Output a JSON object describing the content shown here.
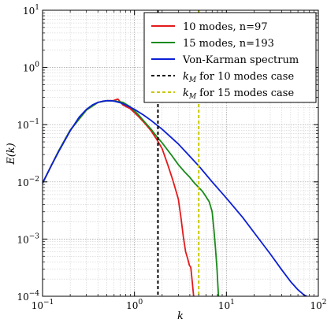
{
  "chart_data": {
    "type": "line",
    "title": "",
    "xlabel": "k",
    "ylabel": "E(k)",
    "xscale": "log",
    "yscale": "log",
    "xlim": [
      0.1,
      100
    ],
    "ylim": [
      0.0001,
      10
    ],
    "grid": true,
    "legend_position": "top-right",
    "x_tick_labels": [
      "10^-1",
      "10^0",
      "10^1",
      "10^2"
    ],
    "y_tick_labels": [
      "10^-4",
      "10^-3",
      "10^-2",
      "10^-1",
      "10^0",
      "10^1"
    ],
    "series": [
      {
        "name": "10 modes, n=97",
        "color": "#e41a1c",
        "style": "solid",
        "x": [
          0.1,
          0.15,
          0.2,
          0.3,
          0.4,
          0.5,
          0.58,
          0.66,
          0.75,
          0.9,
          1.1,
          1.3,
          1.5,
          1.75,
          2.0,
          2.3,
          2.6,
          3.0,
          3.2,
          3.4,
          3.6,
          3.8,
          3.95,
          4.1,
          4.25,
          4.4
        ],
        "y": [
          0.0095,
          0.035,
          0.08,
          0.18,
          0.245,
          0.262,
          0.262,
          0.28,
          0.22,
          0.19,
          0.14,
          0.105,
          0.08,
          0.055,
          0.038,
          0.02,
          0.011,
          0.005,
          0.0024,
          0.0011,
          0.0006,
          0.00045,
          0.00035,
          0.00032,
          0.00018,
          0.0001
        ]
      },
      {
        "name": "15 modes, n=193",
        "color": "#1a8a1a",
        "style": "solid",
        "x": [
          0.1,
          0.15,
          0.2,
          0.3,
          0.4,
          0.5,
          0.6,
          0.75,
          0.9,
          1.1,
          1.3,
          1.5,
          1.75,
          2.0,
          2.5,
          3.0,
          3.5,
          4.0,
          4.5,
          5.0,
          5.5,
          6.0,
          6.5,
          7.0,
          7.3,
          7.6,
          7.9,
          8.2
        ],
        "y": [
          0.0095,
          0.035,
          0.08,
          0.18,
          0.245,
          0.262,
          0.26,
          0.245,
          0.205,
          0.15,
          0.11,
          0.085,
          0.062,
          0.048,
          0.03,
          0.02,
          0.015,
          0.012,
          0.0095,
          0.008,
          0.0068,
          0.0055,
          0.0045,
          0.003,
          0.0015,
          0.0007,
          0.0003,
          0.0001
        ]
      },
      {
        "name": "Von-Karman spectrum",
        "color": "#0b1fd6",
        "style": "solid",
        "x": [
          0.1,
          0.125,
          0.15,
          0.2,
          0.25,
          0.3,
          0.35,
          0.4,
          0.45,
          0.5,
          0.55,
          0.6,
          0.7,
          0.8,
          1.0,
          1.25,
          1.5,
          2.0,
          2.5,
          3.0,
          4.0,
          5.0,
          7.0,
          10.0,
          15.0,
          20.0,
          30.0,
          40.0,
          50.0,
          60.0,
          70.0,
          75.0
        ],
        "y": [
          0.0095,
          0.0195,
          0.034,
          0.078,
          0.135,
          0.185,
          0.222,
          0.245,
          0.257,
          0.262,
          0.262,
          0.258,
          0.242,
          0.222,
          0.185,
          0.148,
          0.12,
          0.083,
          0.06,
          0.046,
          0.028,
          0.019,
          0.01,
          0.0052,
          0.0024,
          0.0013,
          0.00055,
          0.00029,
          0.00018,
          0.00013,
          0.000105,
          0.0001
        ]
      },
      {
        "name": "k_M for 10 modes case",
        "color": "#000000",
        "style": "dashed",
        "vline_x": 1.8
      },
      {
        "name": "k_M for 15 modes case",
        "color": "#c8c800",
        "style": "dashed",
        "vline_x": 5.0
      }
    ]
  },
  "legend": {
    "entries": [
      {
        "label": "10 modes, n=97",
        "color": "#e41a1c",
        "dash": false,
        "math": false
      },
      {
        "label": "15 modes, n=193",
        "color": "#1a8a1a",
        "dash": false,
        "math": false
      },
      {
        "label": "Von-Karman spectrum",
        "color": "#0b1fd6",
        "dash": false,
        "math": false
      },
      {
        "label": "for 10 modes case",
        "color": "#000000",
        "dash": true,
        "math": true,
        "math_main": "k",
        "math_sub": "M"
      },
      {
        "label": "for 15 modes case",
        "color": "#c8c800",
        "dash": true,
        "math": true,
        "math_main": "k",
        "math_sub": "M"
      }
    ]
  },
  "axes": {
    "x_label": "k",
    "y_label": "E(k)"
  }
}
